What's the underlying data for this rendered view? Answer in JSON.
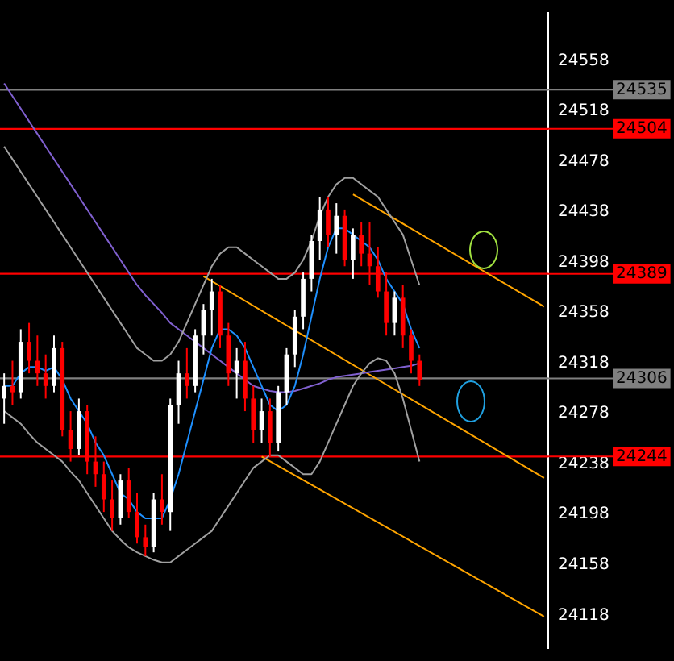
{
  "chart_data": {
    "type": "candlestick",
    "categories": [
      null,
      null,
      null,
      null,
      null,
      null,
      null,
      null,
      null,
      null,
      null,
      null,
      null,
      null,
      null,
      null,
      null,
      null,
      null,
      null,
      null,
      null,
      null,
      null,
      null,
      null,
      null,
      null,
      null,
      null,
      null,
      null,
      null,
      null,
      null,
      null,
      null,
      null,
      null,
      null,
      null,
      null,
      null,
      null,
      null,
      null,
      null,
      null,
      null,
      null,
      null,
      null,
      null,
      null,
      null,
      null,
      null,
      null,
      null,
      null,
      null,
      null,
      null,
      null,
      null,
      null
    ],
    "ohlc": [
      [
        24290,
        24310,
        24270,
        24300
      ],
      [
        24300,
        24320,
        24285,
        24295
      ],
      [
        24295,
        24345,
        24290,
        24335
      ],
      [
        24335,
        24350,
        24310,
        24320
      ],
      [
        24320,
        24340,
        24300,
        24310
      ],
      [
        24310,
        24325,
        24290,
        24300
      ],
      [
        24300,
        24340,
        24295,
        24330
      ],
      [
        24330,
        24335,
        24260,
        24265
      ],
      [
        24265,
        24280,
        24240,
        24250
      ],
      [
        24250,
        24290,
        24245,
        24280
      ],
      [
        24280,
        24285,
        24230,
        24240
      ],
      [
        24240,
        24260,
        24220,
        24230
      ],
      [
        24230,
        24240,
        24200,
        24210
      ],
      [
        24210,
        24225,
        24185,
        24195
      ],
      [
        24195,
        24230,
        24190,
        24225
      ],
      [
        24225,
        24235,
        24195,
        24200
      ],
      [
        24200,
        24215,
        24175,
        24180
      ],
      [
        24180,
        24190,
        24165,
        24172
      ],
      [
        24172,
        24215,
        24168,
        24210
      ],
      [
        24210,
        24230,
        24190,
        24200
      ],
      [
        24200,
        24290,
        24185,
        24285
      ],
      [
        24285,
        24320,
        24270,
        24310
      ],
      [
        24310,
        24330,
        24290,
        24300
      ],
      [
        24300,
        24345,
        24295,
        24340
      ],
      [
        24340,
        24365,
        24325,
        24360
      ],
      [
        24360,
        24385,
        24340,
        24375
      ],
      [
        24375,
        24380,
        24330,
        24340
      ],
      [
        24340,
        24350,
        24300,
        24310
      ],
      [
        24310,
        24330,
        24290,
        24320
      ],
      [
        24320,
        24335,
        24280,
        24290
      ],
      [
        24290,
        24300,
        24255,
        24265
      ],
      [
        24265,
        24290,
        24255,
        24280
      ],
      [
        24280,
        24290,
        24244,
        24255
      ],
      [
        24255,
        24300,
        24248,
        24295
      ],
      [
        24295,
        24330,
        24285,
        24325
      ],
      [
        24325,
        24360,
        24315,
        24355
      ],
      [
        24355,
        24390,
        24345,
        24385
      ],
      [
        24385,
        24420,
        24375,
        24415
      ],
      [
        24415,
        24450,
        24400,
        24440
      ],
      [
        24440,
        24450,
        24410,
        24420
      ],
      [
        24420,
        24445,
        24405,
        24435
      ],
      [
        24435,
        24440,
        24395,
        24400
      ],
      [
        24400,
        24425,
        24385,
        24420
      ],
      [
        24420,
        24430,
        24395,
        24405
      ],
      [
        24405,
        24430,
        24380,
        24395
      ],
      [
        24395,
        24410,
        24370,
        24375
      ],
      [
        24375,
        24390,
        24340,
        24350
      ],
      [
        24350,
        24375,
        24340,
        24370
      ],
      [
        24370,
        24380,
        24330,
        24340
      ],
      [
        24340,
        24345,
        24310,
        24320
      ],
      [
        24320,
        24325,
        24300,
        24305
      ],
      null,
      null,
      null,
      null,
      null,
      null,
      null,
      null,
      null,
      null,
      null,
      null,
      null,
      null,
      null
    ],
    "colors": [
      "#ffffff",
      "#ff0000",
      "#ffffff",
      "#ff0000",
      "#ff0000",
      "#ff0000",
      "#ffffff",
      "#ff0000",
      "#ff0000",
      "#ffffff",
      "#ff0000",
      "#ff0000",
      "#ff0000",
      "#ff0000",
      "#ffffff",
      "#ff0000",
      "#ff0000",
      "#ff0000",
      "#ffffff",
      "#ff0000",
      "#ffffff",
      "#ffffff",
      "#ff0000",
      "#ffffff",
      "#ffffff",
      "#ffffff",
      "#ff0000",
      "#ff0000",
      "#ffffff",
      "#ff0000",
      "#ff0000",
      "#ffffff",
      "#ff0000",
      "#ffffff",
      "#ffffff",
      "#ffffff",
      "#ffffff",
      "#ffffff",
      "#ffffff",
      "#ff0000",
      "#ffffff",
      "#ff0000",
      "#ffffff",
      "#ff0000",
      "#ff0000",
      "#ff0000",
      "#ff0000",
      "#ffffff",
      "#ff0000",
      "#ff0000",
      "#ff0000",
      null,
      null,
      null,
      null,
      null,
      null,
      null,
      null,
      null,
      null,
      null,
      null,
      null,
      null,
      null
    ],
    "series": [
      {
        "type": "line",
        "color": "#a0a0a0",
        "values": [
          24490,
          24480,
          24470,
          24460,
          24450,
          24440,
          24430,
          24420,
          24410,
          24400,
          24390,
          24380,
          24370,
          24360,
          24350,
          24340,
          24330,
          24325,
          24320,
          24320,
          24325,
          24335,
          24350,
          24365,
          24380,
          24395,
          24405,
          24410,
          24410,
          24405,
          24400,
          24395,
          24390,
          24385,
          24385,
          24390,
          24400,
          24415,
          24435,
          24450,
          24460,
          24465,
          24465,
          24460,
          24455,
          24450,
          24440,
          24430,
          24420,
          24400,
          24380,
          null,
          null,
          null,
          null,
          null,
          null,
          null,
          null,
          null,
          null,
          null,
          null,
          null,
          null,
          null
        ]
      },
      {
        "type": "line",
        "color": "#a0a0a0",
        "values": [
          24280,
          24275,
          24270,
          24262,
          24255,
          24250,
          24245,
          24240,
          24232,
          24225,
          24215,
          24205,
          24195,
          24185,
          24178,
          24172,
          24168,
          24165,
          24162,
          24160,
          24160,
          24165,
          24170,
          24175,
          24180,
          24185,
          24195,
          24205,
          24215,
          24225,
          24235,
          24240,
          24245,
          24245,
          24240,
          24235,
          24230,
          24230,
          24240,
          24255,
          24270,
          24285,
          24300,
          24310,
          24318,
          24322,
          24320,
          24310,
          24290,
          24265,
          24240,
          null,
          null,
          null,
          null,
          null,
          null,
          null,
          null,
          null,
          null,
          null,
          null,
          null,
          null,
          null
        ]
      },
      {
        "type": "line",
        "color": "#1e90ff",
        "values": [
          24300,
          24300,
          24310,
          24315,
          24315,
          24312,
          24315,
          24305,
          24290,
          24280,
          24270,
          24255,
          24245,
          24230,
          24215,
          24210,
          24200,
          24195,
          24195,
          24195,
          24210,
          24230,
          24255,
          24280,
          24305,
          24330,
          24345,
          24345,
          24340,
          24330,
          24315,
          24300,
          24285,
          24280,
          24285,
          24300,
          24325,
          24355,
          24385,
          24410,
          24425,
          24425,
          24420,
          24415,
          24410,
          24400,
          24385,
          24375,
          24365,
          24345,
          24330,
          null,
          null,
          null,
          null,
          null,
          null,
          null,
          null,
          null,
          null,
          null,
          null,
          null,
          null,
          null
        ]
      },
      {
        "type": "line",
        "color": "#8060d0",
        "values": [
          24540,
          24530,
          24520,
          24510,
          24500,
          24490,
          24480,
          24470,
          24460,
          24450,
          24440,
          24430,
          24420,
          24410,
          24400,
          24390,
          24380,
          24372,
          24365,
          24358,
          24350,
          24345,
          24340,
          24335,
          24330,
          24325,
          24320,
          24315,
          24310,
          24305,
          24300,
          24298,
          24296,
          24295,
          24295,
          24296,
          24298,
          24300,
          24302,
          24305,
          24307,
          24308,
          24309,
          24310,
          24311,
          24312,
          24313,
          24314,
          24315,
          24316,
          24318,
          null,
          null,
          null,
          null,
          null,
          null,
          null,
          null,
          null,
          null,
          null,
          null,
          null,
          null,
          null
        ]
      },
      {
        "type": "line",
        "color": "#ffa500",
        "values": [
          null,
          null,
          null,
          null,
          null,
          null,
          null,
          null,
          null,
          null,
          null,
          null,
          null,
          null,
          null,
          null,
          null,
          null,
          null,
          null,
          null,
          null,
          null,
          null,
          null,
          null,
          null,
          null,
          null,
          null,
          null,
          null,
          null,
          null,
          null,
          null,
          null,
          null,
          null,
          null,
          null,
          null,
          24452,
          null,
          null,
          null,
          null,
          null,
          null,
          null,
          null,
          null,
          null,
          null,
          null,
          null,
          null,
          null,
          null,
          null,
          null,
          null,
          null,
          null,
          null,
          24363
        ]
      },
      {
        "type": "line",
        "color": "#ffa500",
        "values": [
          null,
          null,
          null,
          null,
          null,
          null,
          null,
          null,
          null,
          null,
          null,
          null,
          null,
          null,
          null,
          null,
          null,
          null,
          null,
          null,
          null,
          null,
          null,
          null,
          24387,
          null,
          null,
          null,
          null,
          null,
          null,
          null,
          null,
          null,
          null,
          null,
          null,
          null,
          null,
          null,
          null,
          null,
          null,
          null,
          null,
          null,
          null,
          null,
          null,
          null,
          null,
          null,
          null,
          null,
          null,
          null,
          null,
          null,
          null,
          null,
          null,
          null,
          null,
          null,
          null,
          24227
        ]
      },
      {
        "type": "line",
        "color": "#ffa500",
        "values": [
          null,
          null,
          null,
          null,
          null,
          null,
          null,
          null,
          null,
          null,
          null,
          null,
          null,
          null,
          null,
          null,
          null,
          null,
          null,
          null,
          null,
          null,
          null,
          null,
          null,
          null,
          null,
          null,
          null,
          null,
          null,
          24244,
          null,
          null,
          null,
          null,
          null,
          null,
          null,
          null,
          null,
          null,
          null,
          null,
          null,
          null,
          null,
          null,
          null,
          null,
          null,
          null,
          null,
          null,
          null,
          null,
          null,
          null,
          null,
          null,
          null,
          null,
          null,
          null,
          null,
          24117
        ]
      }
    ],
    "ylim": [
      24092,
      24596
    ],
    "yticks": [
      24118,
      24158,
      24198,
      24238,
      24278,
      24318,
      24358,
      24398,
      24438,
      24478,
      24518,
      24558
    ],
    "ref_lines": [
      {
        "axis": "y",
        "value": 24535,
        "label": "24535",
        "color": "#808080"
      },
      {
        "axis": "y",
        "value": 24504,
        "label": "24504",
        "color": "#ff0000"
      },
      {
        "axis": "y",
        "value": 24389,
        "label": "24389",
        "color": "#ff0000"
      },
      {
        "axis": "y",
        "value": 24306,
        "label": "24306",
        "color": "#808080"
      },
      {
        "axis": "y",
        "value": 24244,
        "label": "24244",
        "color": "#ff0000"
      }
    ],
    "tick_labels": "y",
    "grid": false,
    "legend": false
  }
}
